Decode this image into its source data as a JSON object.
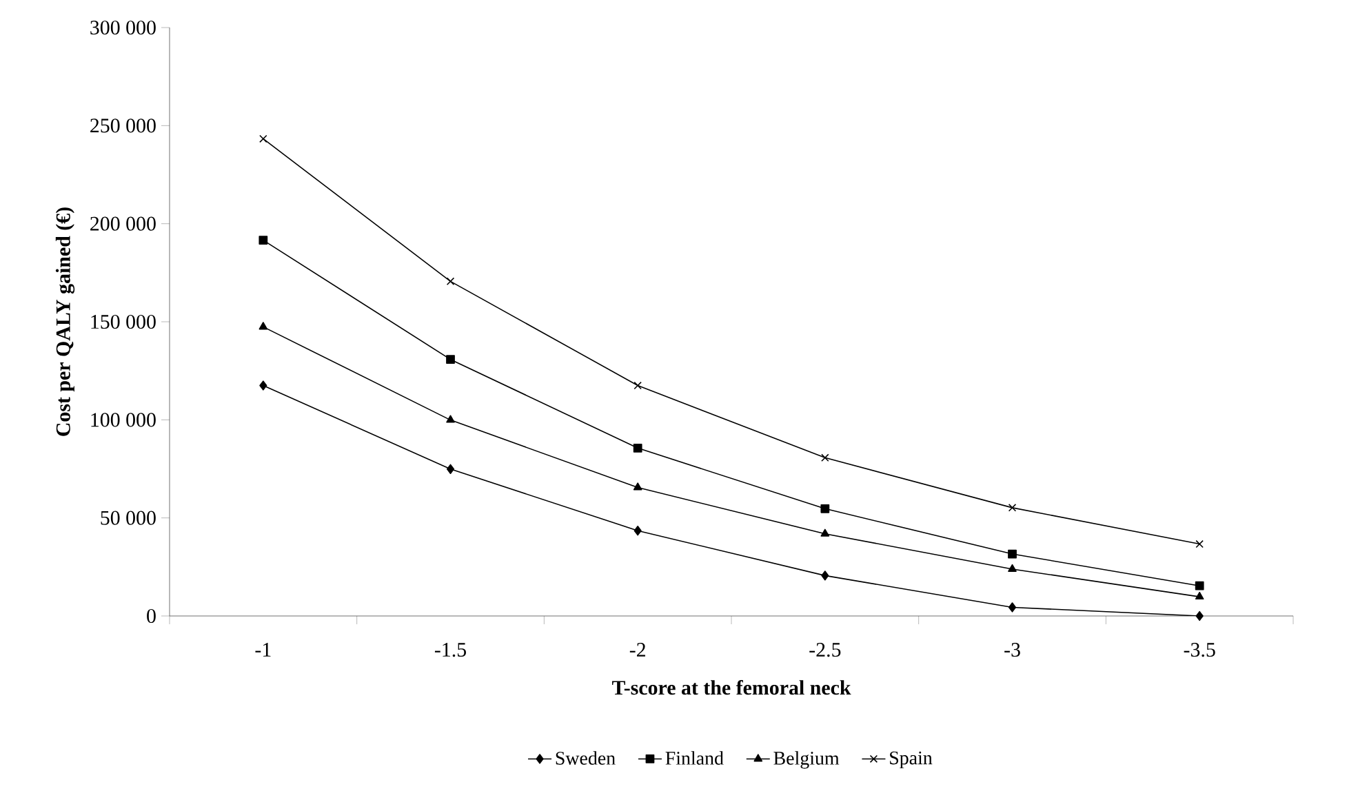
{
  "chart_data": {
    "type": "line",
    "xlabel": "T-score at the femoral neck",
    "ylabel": "Cost per QALY gained (€)",
    "categories": [
      "-1",
      "-1.5",
      "-2",
      "-2.5",
      "-3",
      "-3.5"
    ],
    "ylim": [
      0,
      300000
    ],
    "yticks": [
      {
        "value": 0,
        "label": "0"
      },
      {
        "value": 50000,
        "label": "50 000"
      },
      {
        "value": 100000,
        "label": "100 000"
      },
      {
        "value": 150000,
        "label": "150 000"
      },
      {
        "value": 200000,
        "label": "200 000"
      },
      {
        "value": 250000,
        "label": "250 000"
      },
      {
        "value": 300000,
        "label": "300 000"
      }
    ],
    "legend": "bottom",
    "line_style": "solid",
    "series": [
      {
        "name": "Sweden",
        "color": "#000000",
        "marker": "diamond",
        "values": [
          117500,
          74900,
          43500,
          20600,
          4400,
          0
        ]
      },
      {
        "name": "Finland",
        "color": "#000000",
        "marker": "square",
        "values": [
          191600,
          130800,
          85600,
          54700,
          31600,
          15400
        ]
      },
      {
        "name": "Belgium",
        "color": "#000000",
        "marker": "triangle",
        "values": [
          147400,
          99900,
          65500,
          41900,
          23900,
          9800
        ]
      },
      {
        "name": "Spain",
        "color": "#000000",
        "marker": "cross",
        "values": [
          243300,
          170600,
          117500,
          80700,
          55200,
          36700
        ]
      }
    ]
  }
}
